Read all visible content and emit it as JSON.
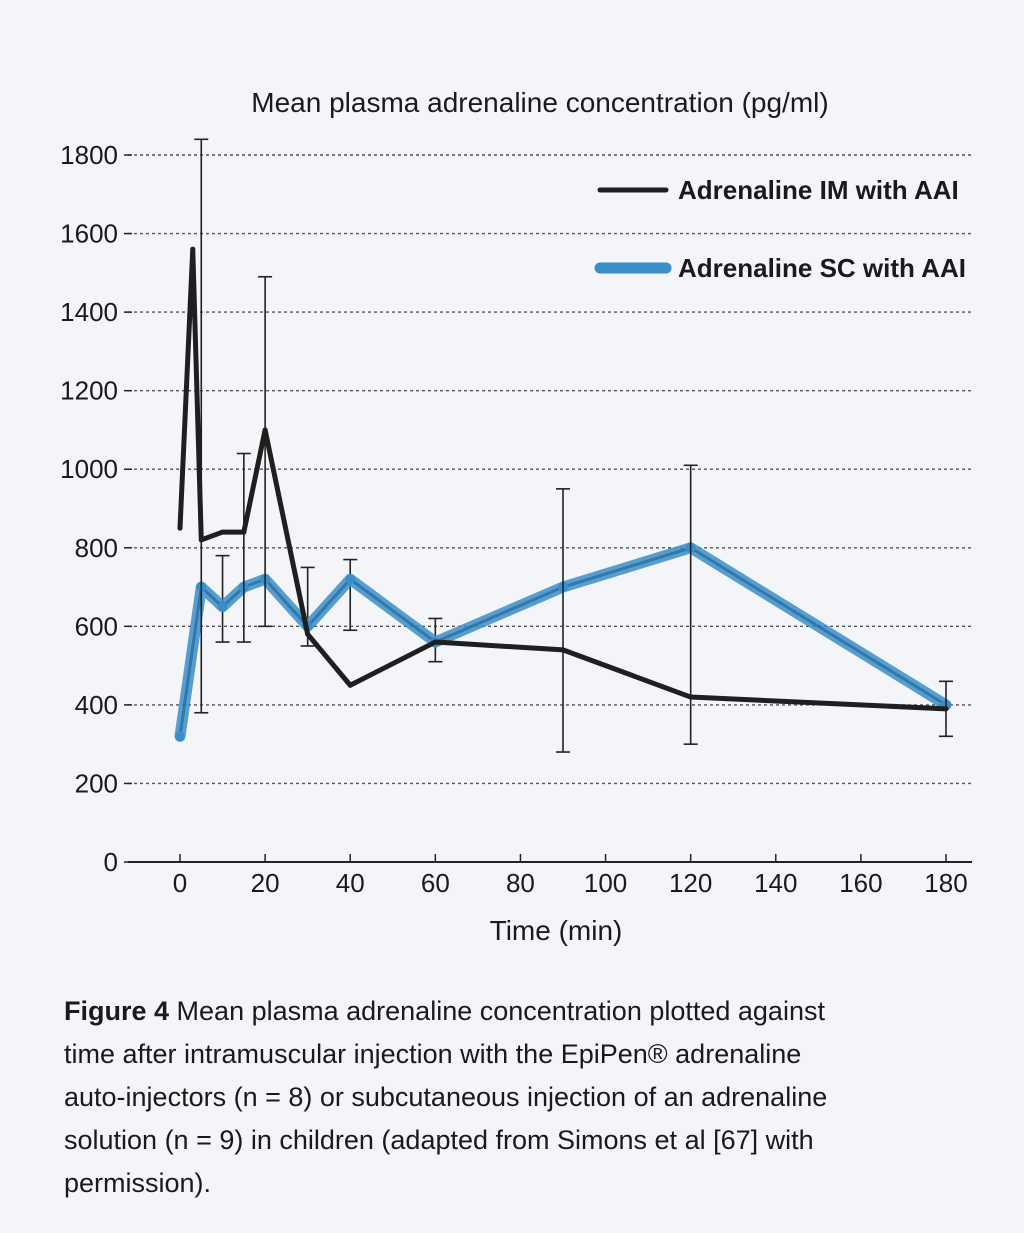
{
  "chart_data": {
    "type": "line",
    "title": "Mean plasma adrenaline concentration (pg/ml)",
    "xlabel": "Time (min)",
    "ylabel": "",
    "xlim": [
      0,
      180
    ],
    "ylim": [
      0,
      1800
    ],
    "x_ticks": [
      0,
      20,
      40,
      60,
      80,
      100,
      120,
      140,
      160,
      180
    ],
    "y_ticks": [
      0,
      200,
      400,
      600,
      800,
      1000,
      1200,
      1400,
      1600,
      1800
    ],
    "grid": "horizontal dashed",
    "legend_position": "top-right",
    "series": [
      {
        "name": "Adrenaline IM with AAI",
        "color": "#1f1f1f",
        "x": [
          0,
          3,
          5,
          10,
          15,
          20,
          30,
          40,
          60,
          90,
          120,
          180
        ],
        "y": [
          850,
          1560,
          820,
          840,
          840,
          1100,
          580,
          450,
          560,
          540,
          420,
          390
        ],
        "error_bars": {
          "x": [
            5,
            15,
            20,
            90,
            120,
            180
          ],
          "upper": [
            1840,
            1040,
            1490,
            950,
            1010,
            460
          ],
          "lower": [
            380,
            560,
            600,
            280,
            300,
            320
          ]
        }
      },
      {
        "name": "Adrenaline SC with AAI",
        "color": "#3a8ec9",
        "x": [
          0,
          5,
          10,
          15,
          20,
          30,
          40,
          60,
          90,
          120,
          180
        ],
        "y": [
          320,
          700,
          650,
          700,
          720,
          600,
          720,
          560,
          700,
          800,
          400
        ],
        "error_bars": {
          "x": [
            10,
            30,
            40,
            60
          ],
          "upper": [
            780,
            750,
            770,
            620
          ],
          "lower": [
            560,
            550,
            590,
            510
          ]
        }
      }
    ]
  },
  "caption": {
    "label": "Figure 4",
    "lines": [
      "Mean plasma adrenaline concentration plotted against",
      "time after intramuscular injection with the EpiPen® adrenaline",
      "auto-injectors (n = 8) or subcutaneous injection of an adrenaline",
      "solution (n = 9) in children (adapted from Simons et al [67] with",
      "permission)."
    ]
  }
}
